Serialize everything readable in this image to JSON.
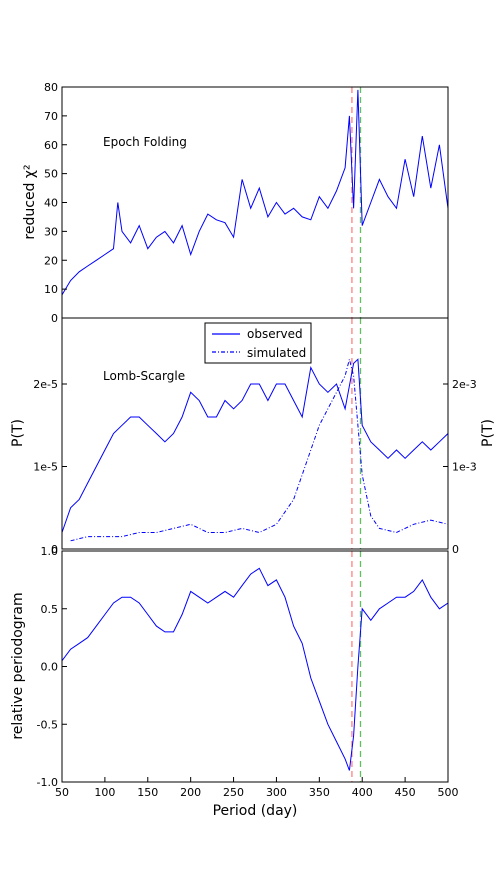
{
  "chart_data": [
    {
      "type": "line",
      "panel": "top",
      "ylabel": "reduced χ²",
      "annotation": "Epoch Folding",
      "xlim": [
        50,
        500
      ],
      "ylim": [
        0,
        80
      ],
      "yticks": [
        "0",
        "10",
        "20",
        "30",
        "40",
        "50",
        "60",
        "70",
        "80"
      ],
      "color": "#0000ff",
      "series": [
        {
          "x": [
            50,
            60,
            70,
            80,
            90,
            100,
            110,
            115,
            120,
            130,
            140,
            150,
            160,
            170,
            180,
            190,
            200,
            210,
            220,
            230,
            240,
            250,
            260,
            270,
            280,
            290,
            300,
            310,
            320,
            330,
            340,
            350,
            360,
            370,
            380,
            385,
            390,
            395,
            400,
            410,
            420,
            430,
            440,
            450,
            460,
            470,
            480,
            490,
            500
          ],
          "y": [
            8,
            13,
            16,
            18,
            20,
            22,
            24,
            40,
            30,
            26,
            32,
            24,
            28,
            30,
            26,
            32,
            22,
            30,
            36,
            34,
            33,
            28,
            48,
            38,
            45,
            35,
            40,
            36,
            38,
            35,
            34,
            42,
            38,
            44,
            52,
            70,
            38,
            79,
            32,
            40,
            48,
            42,
            38,
            55,
            42,
            63,
            45,
            60,
            38
          ]
        }
      ]
    },
    {
      "type": "line",
      "panel": "middle",
      "ylabel": "P(T)",
      "ylabel_right": "P(T)",
      "annotation": "Lomb-Scargle",
      "xlim": [
        50,
        500
      ],
      "ylim": [
        0,
        2.8e-05
      ],
      "yticks_left": [
        "0",
        "1e-5",
        "2e-5"
      ],
      "yticks_right": [
        "0",
        "1e-3",
        "2e-3"
      ],
      "legend": {
        "position": "top-center",
        "entries": [
          "observed",
          "simulated"
        ]
      },
      "series": [
        {
          "name": "observed",
          "style": "solid",
          "x": [
            50,
            60,
            70,
            80,
            90,
            100,
            110,
            120,
            130,
            140,
            150,
            160,
            170,
            180,
            190,
            200,
            210,
            220,
            230,
            240,
            250,
            260,
            270,
            280,
            290,
            300,
            310,
            320,
            330,
            340,
            350,
            360,
            370,
            380,
            390,
            395,
            400,
            410,
            420,
            430,
            440,
            450,
            460,
            470,
            480,
            490,
            500
          ],
          "y": [
            2e-06,
            5e-06,
            6e-06,
            8e-06,
            1e-05,
            1.2e-05,
            1.4e-05,
            1.5e-05,
            1.6e-05,
            1.6e-05,
            1.5e-05,
            1.4e-05,
            1.3e-05,
            1.4e-05,
            1.6e-05,
            1.9e-05,
            1.8e-05,
            1.6e-05,
            1.6e-05,
            1.8e-05,
            1.7e-05,
            1.8e-05,
            2e-05,
            2e-05,
            1.8e-05,
            2e-05,
            2e-05,
            1.8e-05,
            1.6e-05,
            2.2e-05,
            2e-05,
            1.9e-05,
            2e-05,
            1.7e-05,
            2.25e-05,
            2.3e-05,
            1.5e-05,
            1.3e-05,
            1.2e-05,
            1.1e-05,
            1.2e-05,
            1.1e-05,
            1.2e-05,
            1.3e-05,
            1.2e-05,
            1.3e-05,
            1.4e-05
          ]
        },
        {
          "name": "simulated",
          "style": "dashdot",
          "x": [
            60,
            80,
            100,
            120,
            140,
            160,
            180,
            200,
            220,
            240,
            260,
            280,
            300,
            320,
            340,
            350,
            360,
            370,
            380,
            385,
            390,
            395,
            400,
            410,
            420,
            440,
            460,
            480,
            500
          ],
          "y": [
            1e-06,
            1.5e-06,
            1.5e-06,
            1.5e-06,
            2e-06,
            2e-06,
            2.5e-06,
            3e-06,
            2e-06,
            2e-06,
            2.5e-06,
            2e-06,
            3e-06,
            6e-06,
            1.2e-05,
            1.5e-05,
            1.7e-05,
            1.9e-05,
            2.1e-05,
            2.3e-05,
            2.1e-05,
            1.5e-05,
            9e-06,
            4e-06,
            2.5e-06,
            2e-06,
            3e-06,
            3.5e-06,
            3e-06
          ]
        }
      ]
    },
    {
      "type": "line",
      "panel": "bottom",
      "ylabel": "relative periodogram",
      "xlabel": "Period (day)",
      "xlim": [
        50,
        500
      ],
      "ylim": [
        -1.0,
        1.0
      ],
      "yticks": [
        "-1.0",
        "-0.5",
        "0.0",
        "0.5",
        "1.0"
      ],
      "xticks": [
        "50",
        "100",
        "150",
        "200",
        "250",
        "300",
        "350",
        "400",
        "450",
        "500"
      ],
      "series": [
        {
          "x": [
            50,
            60,
            70,
            80,
            90,
            100,
            110,
            120,
            130,
            140,
            150,
            160,
            170,
            180,
            190,
            200,
            210,
            220,
            230,
            240,
            250,
            260,
            270,
            280,
            290,
            300,
            310,
            320,
            330,
            340,
            350,
            360,
            370,
            380,
            385,
            390,
            395,
            400,
            410,
            420,
            430,
            440,
            450,
            460,
            470,
            480,
            490,
            500
          ],
          "y": [
            0.05,
            0.15,
            0.2,
            0.25,
            0.35,
            0.45,
            0.55,
            0.6,
            0.6,
            0.55,
            0.45,
            0.35,
            0.3,
            0.3,
            0.45,
            0.65,
            0.6,
            0.55,
            0.6,
            0.65,
            0.6,
            0.7,
            0.8,
            0.85,
            0.7,
            0.75,
            0.6,
            0.35,
            0.2,
            -0.1,
            -0.3,
            -0.5,
            -0.65,
            -0.8,
            -0.9,
            -0.6,
            0.0,
            0.5,
            0.4,
            0.5,
            0.55,
            0.6,
            0.6,
            0.65,
            0.75,
            0.6,
            0.5,
            0.55
          ]
        }
      ]
    }
  ],
  "reference_lines": [
    {
      "x": 388,
      "color": "#ff8080",
      "style": "dashed"
    },
    {
      "x": 398,
      "color": "#60c060",
      "style": "dashed"
    }
  ]
}
